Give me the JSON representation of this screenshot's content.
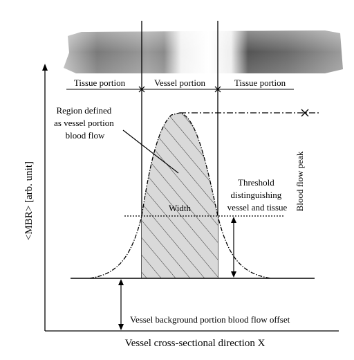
{
  "labels": {
    "tissue_left": "Tissue portion",
    "vessel": "Vessel portion",
    "tissue_right": "Tissue portion",
    "region_line1": "Region defined",
    "region_line2": "as vessel portion",
    "region_line3": "blood flow",
    "threshold_line1": "Threshold",
    "threshold_line2": "distinguishing",
    "threshold_line3": "vessel and tissue",
    "width": "Width",
    "peak": "Blood flow peak",
    "offset": "Vessel background portion blood flow offset",
    "y_axis": "<MBR> [arb. unit]",
    "x_axis": "Vessel cross-sectional direction X"
  },
  "colors": {
    "line": "#000000",
    "fill": "#d9d9d9",
    "hatch": "#333333"
  }
}
